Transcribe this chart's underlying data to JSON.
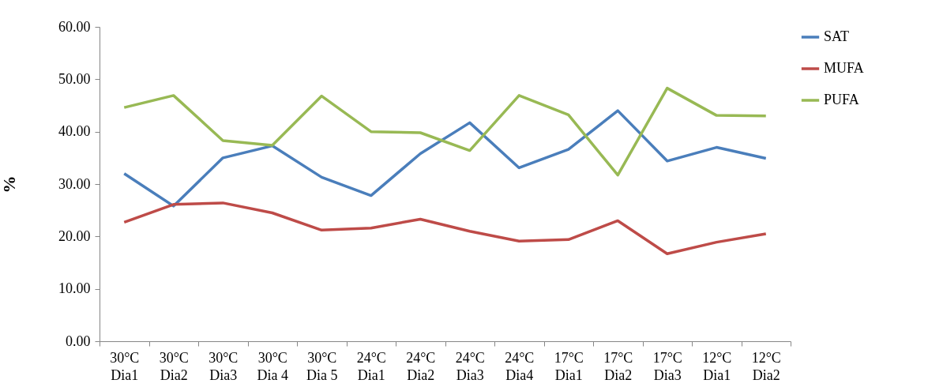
{
  "chart_data": {
    "type": "line",
    "ylabel": "%",
    "categories": [
      "30°C Dia1",
      "30°C Dia2",
      "30°C Dia3",
      "30°C Dia 4",
      "30°C Dia 5",
      "24°C Dia1",
      "24°C Dia2",
      "24°C Dia3",
      "24°C Dia4",
      "17°C Dia1",
      "17°C Dia2",
      "17°C Dia3",
      "12°C Dia1",
      "12°C Dia2"
    ],
    "series": [
      {
        "name": "SAT",
        "color": "#4a7ebb",
        "values": [
          32.0,
          25.8,
          35.0,
          37.3,
          31.3,
          27.8,
          35.8,
          41.7,
          33.1,
          36.6,
          44.0,
          34.4,
          37.0,
          34.9
        ]
      },
      {
        "name": "MUFA",
        "color": "#be4b48",
        "values": [
          22.7,
          26.1,
          26.4,
          24.5,
          21.2,
          21.6,
          23.3,
          21.0,
          19.1,
          19.4,
          23.0,
          16.7,
          18.9,
          20.5
        ]
      },
      {
        "name": "PUFA",
        "color": "#98b954",
        "values": [
          44.6,
          46.9,
          38.3,
          37.4,
          46.8,
          40.0,
          39.8,
          36.4,
          46.9,
          43.2,
          31.7,
          48.3,
          43.1,
          43.0
        ]
      }
    ],
    "ylim": [
      0,
      60
    ],
    "yticks": [
      {
        "value": 0,
        "label": "0.00"
      },
      {
        "value": 10,
        "label": "10.00"
      },
      {
        "value": 20,
        "label": "20.00"
      },
      {
        "value": 30,
        "label": "30.00"
      },
      {
        "value": 40,
        "label": "40.00"
      },
      {
        "value": 50,
        "label": "50.00"
      },
      {
        "value": 60,
        "label": "60.00"
      }
    ],
    "grid": false,
    "legend": "right",
    "marker": "none",
    "line_style": "solid"
  }
}
